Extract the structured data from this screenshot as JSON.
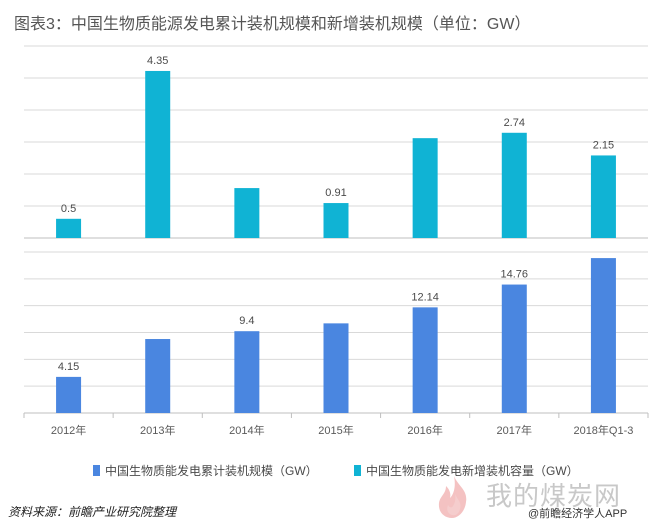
{
  "title": "图表3：中国生物质能源发电累计装机规模和新增装机规模（单位：GW）",
  "colors": {
    "cumulative": "#4a86e0",
    "new": "#10b3d4",
    "grid": "#d9d9d9",
    "axis": "#bfbfbf"
  },
  "chart_data": [
    {
      "type": "bar",
      "panel": "top",
      "categories": [
        "2012年",
        "2013年",
        "2014年",
        "2015年",
        "2016年",
        "2017年",
        "2018年Q1-3"
      ],
      "series": [
        {
          "name": "中国生物质能发电新增装机容量（GW）",
          "values": [
            0.5,
            4.35,
            1.3,
            0.91,
            2.6,
            2.74,
            2.15
          ],
          "labels": [
            "0.5",
            "4.35",
            "",
            "0.91",
            "",
            "2.74",
            "2.15"
          ]
        }
      ],
      "ylim": [
        0,
        5
      ],
      "grid": true
    },
    {
      "type": "bar",
      "panel": "bottom",
      "categories": [
        "2012年",
        "2013年",
        "2014年",
        "2015年",
        "2016年",
        "2017年",
        "2018年Q1-3"
      ],
      "series": [
        {
          "name": "中国生物质能发电累计装机规模（GW）",
          "values": [
            4.15,
            8.5,
            9.4,
            10.3,
            12.14,
            14.76,
            17.8
          ],
          "labels": [
            "4.15",
            "",
            "9.4",
            "",
            "12.14",
            "14.76",
            ""
          ]
        }
      ],
      "ylim": [
        0,
        18.5
      ],
      "grid": true
    }
  ],
  "legend": {
    "items": [
      {
        "label": "中国生物质能发电累计装机规模（GW）",
        "color": "#4a86e0"
      },
      {
        "label": "中国生物质能发电新增装机容量（GW）",
        "color": "#10b3d4"
      }
    ],
    "placement": "bottom"
  },
  "source": "资料来源：前瞻产业研究院整理",
  "watermark": {
    "site": "我的煤炭网",
    "app": "@前瞻经济学人APP"
  }
}
